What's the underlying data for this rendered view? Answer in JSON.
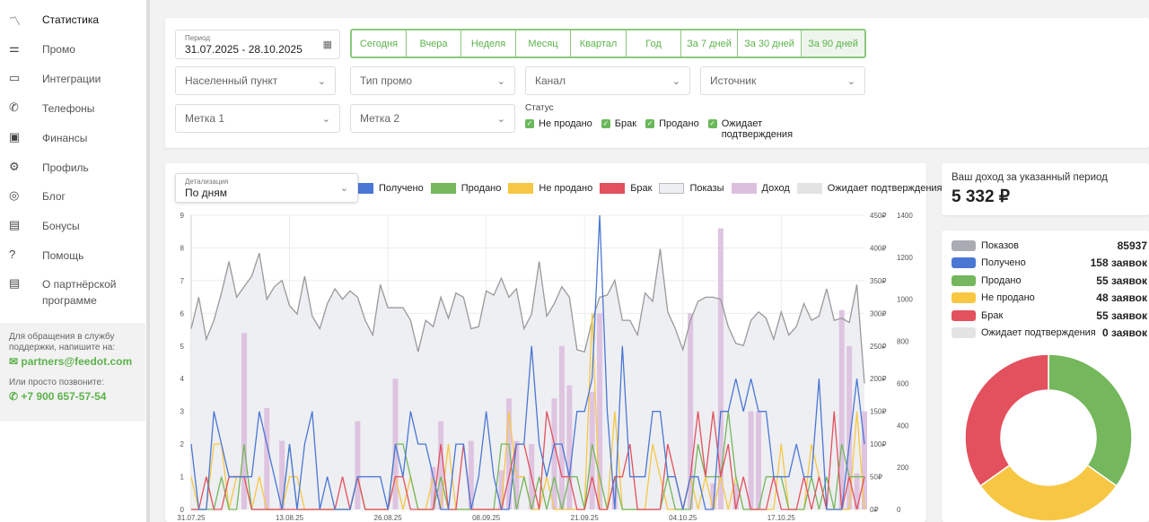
{
  "sidebar": {
    "items": [
      {
        "label": "Статистика",
        "icon": "chart-line-icon",
        "glyph": "〽"
      },
      {
        "label": "Промо",
        "icon": "sliders-icon",
        "glyph": "⚌"
      },
      {
        "label": "Интеграции",
        "icon": "api-icon",
        "glyph": "▭"
      },
      {
        "label": "Телефоны",
        "icon": "phone-icon",
        "glyph": "✆"
      },
      {
        "label": "Финансы",
        "icon": "wallet-icon",
        "glyph": "▣"
      },
      {
        "label": "Профиль",
        "icon": "gear-icon",
        "glyph": "⚙"
      },
      {
        "label": "Блог",
        "icon": "chat-icon",
        "glyph": "◎"
      },
      {
        "label": "Бонусы",
        "icon": "ticket-icon",
        "glyph": "▤"
      },
      {
        "label": "Помощь",
        "icon": "help-icon",
        "glyph": "?"
      },
      {
        "label": "О партнёрской программе",
        "icon": "document-icon",
        "glyph": "▤"
      }
    ],
    "support": {
      "text1": "Для обращения в службу поддержки, напишите на:",
      "email": "partners@feedot.com",
      "text2": "Или просто позвоните:",
      "phone": "+7 900 657-57-54"
    }
  },
  "filters": {
    "period_label": "Период",
    "period_value": "31.07.2025 - 28.10.2025",
    "periods": [
      "Сегодня",
      "Вчера",
      "Неделя",
      "Месяц",
      "Квартал",
      "Год",
      "За 7 дней",
      "За 30 дней",
      "За 90 дней"
    ],
    "selects": [
      "Населенный пункт",
      "Тип промо",
      "Канал",
      "Источник",
      "Метка 1",
      "Метка 2"
    ],
    "status_label": "Статус",
    "statuses": [
      "Не продано",
      "Брак",
      "Продано",
      "Ожидает подтверждения"
    ]
  },
  "detail": {
    "label": "Детализация",
    "value": "По дням"
  },
  "income": {
    "label": "Ваш доход за указанный период",
    "value": "5 332 ₽"
  },
  "summary": [
    {
      "label": "Показов",
      "value": "85937",
      "color": "#a9acb3"
    },
    {
      "label": "Получено",
      "value": "158 заявок",
      "color": "#4a77d4"
    },
    {
      "label": "Продано",
      "value": "55 заявок",
      "color": "#74b75c"
    },
    {
      "label": "Не продано",
      "value": "48 заявок",
      "color": "#f7c744"
    },
    {
      "label": "Брак",
      "value": "55 заявок",
      "color": "#e3505e"
    },
    {
      "label": "Ожидает подтверждения",
      "value": "0 заявок",
      "color": "#e3e3e3"
    }
  ],
  "donut": {
    "values": [
      55,
      48,
      55,
      0
    ],
    "colors": [
      "#74b75c",
      "#f7c744",
      "#e3505e",
      "#e3e3e3"
    ]
  },
  "chart_data": {
    "type": "line",
    "legend": [
      {
        "name": "Получено",
        "color": "#4a77d4"
      },
      {
        "name": "Продано",
        "color": "#74b75c"
      },
      {
        "name": "Не продано",
        "color": "#f7c744"
      },
      {
        "name": "Брак",
        "color": "#e3505e"
      },
      {
        "name": "Показы",
        "color": "#eeeff2"
      },
      {
        "name": "Доход",
        "color": "#dcbfdf"
      },
      {
        "name": "Ожидает подтверждения",
        "color": "#e3e3e3"
      }
    ],
    "xlabels": [
      {
        "i": 0,
        "t": "31.07.25"
      },
      {
        "i": 13,
        "t": "13.08.25"
      },
      {
        "i": 26,
        "t": "26.08.25"
      },
      {
        "i": 39,
        "t": "08.09.25"
      },
      {
        "i": 52,
        "t": "21.09.25"
      },
      {
        "i": 65,
        "t": "04.10.25"
      },
      {
        "i": 78,
        "t": "17.10.25"
      }
    ],
    "y_left": {
      "min": 0,
      "max": 9,
      "ticks": [
        "0",
        "1",
        "2",
        "3",
        "4",
        "5",
        "6",
        "7",
        "8",
        "9"
      ]
    },
    "y_income": {
      "min": 0,
      "max": 450,
      "ticks": [
        "0₽",
        "50₽",
        "100₽",
        "150₽",
        "200₽",
        "250₽",
        "300₽",
        "350₽",
        "400₽",
        "450₽"
      ]
    },
    "y_shows": {
      "min": 0,
      "max": 1400,
      "ticks": [
        "0",
        "200",
        "400",
        "600",
        "800",
        "1000",
        "1200",
        "1400"
      ]
    },
    "shows": [
      860,
      1010,
      810,
      900,
      1030,
      1180,
      1010,
      1060,
      1110,
      1220,
      1000,
      1060,
      1090,
      970,
      930,
      1110,
      920,
      860,
      980,
      1050,
      1000,
      1040,
      1010,
      900,
      830,
      1070,
      960,
      960,
      960,
      900,
      750,
      900,
      870,
      1010,
      910,
      1030,
      1010,
      860,
      870,
      1040,
      1020,
      1100,
      1010,
      1050,
      860,
      930,
      1180,
      920,
      980,
      1060,
      1010,
      760,
      750,
      900,
      1010,
      1020,
      1090,
      900,
      900,
      830,
      1030,
      990,
      1240,
      940,
      860,
      760,
      900,
      990,
      1010,
      1010,
      1000,
      870,
      790,
      780,
      900,
      940,
      910,
      810,
      940,
      830,
      870,
      980,
      900,
      920,
      1050,
      900,
      910,
      890,
      1070,
      600
    ],
    "received": [
      2,
      0,
      0,
      3,
      2,
      1,
      1,
      1,
      1,
      3,
      2,
      1,
      0,
      2,
      0,
      2,
      3,
      0,
      1,
      0,
      0,
      0,
      1,
      1,
      1,
      1,
      0,
      2,
      1,
      3,
      2,
      2,
      1,
      0,
      0,
      2,
      2,
      0,
      1,
      3,
      1,
      0,
      0,
      2,
      2,
      5,
      2,
      1,
      2,
      2,
      1,
      3,
      3,
      4,
      9,
      3,
      0,
      5,
      1,
      1,
      1,
      3,
      3,
      1,
      1,
      0,
      1,
      1,
      0,
      0,
      3,
      3,
      4,
      3,
      4,
      3,
      3,
      1,
      1,
      1,
      2,
      1,
      1,
      4,
      0,
      0,
      0,
      2,
      4,
      2
    ],
    "sold": [
      0,
      0,
      0,
      0,
      1,
      0,
      0,
      2,
      0,
      0,
      0,
      0,
      0,
      2,
      0,
      0,
      0,
      0,
      0,
      0,
      0,
      0,
      1,
      0,
      0,
      0,
      0,
      2,
      2,
      1,
      0,
      0,
      0,
      1,
      0,
      0,
      0,
      0,
      0,
      0,
      0,
      2,
      2,
      0,
      1,
      0,
      1,
      0,
      1,
      0,
      1,
      1,
      0,
      2,
      1,
      0,
      1,
      0,
      0,
      0,
      0,
      0,
      0,
      1,
      0,
      0,
      0,
      2,
      1,
      1,
      1,
      3,
      1,
      0,
      0,
      0,
      1,
      1,
      1,
      0,
      0,
      0,
      1,
      0,
      1,
      0,
      2,
      1,
      1,
      1
    ],
    "not_sold": [
      1,
      0,
      0,
      2,
      2,
      0,
      1,
      1,
      0,
      1,
      0,
      0,
      0,
      1,
      1,
      0,
      0,
      0,
      0,
      0,
      0,
      0,
      1,
      0,
      0,
      0,
      0,
      1,
      0,
      1,
      0,
      0,
      1,
      0,
      2,
      0,
      0,
      0,
      0,
      0,
      0,
      0,
      3,
      1,
      1,
      0,
      0,
      1,
      0,
      0,
      0,
      0,
      0,
      6,
      0,
      0,
      3,
      0,
      0,
      0,
      0,
      2,
      1,
      0,
      0,
      0,
      1,
      0,
      1,
      0,
      1,
      0,
      1,
      0,
      0,
      0,
      0,
      0,
      2,
      0,
      0,
      0,
      2,
      1,
      0,
      0,
      0,
      0,
      3,
      0
    ],
    "brak": [
      0,
      0,
      1,
      0,
      0,
      1,
      1,
      1,
      0,
      0,
      0,
      0,
      0,
      0,
      0,
      0,
      0,
      0,
      0,
      0,
      1,
      0,
      1,
      0,
      0,
      0,
      0,
      1,
      1,
      0,
      0,
      0,
      0,
      2,
      0,
      0,
      2,
      0,
      0,
      0,
      0,
      0,
      1,
      2,
      2,
      1,
      0,
      3,
      2,
      1,
      1,
      0,
      0,
      1,
      0,
      0,
      1,
      1,
      2,
      0,
      0,
      0,
      0,
      2,
      1,
      0,
      1,
      3,
      1,
      3,
      1,
      2,
      0,
      1,
      0,
      0,
      0,
      1,
      0,
      0,
      0,
      1,
      0,
      1,
      0,
      3,
      0,
      1,
      0,
      1
    ],
    "income": [
      0,
      0,
      0,
      0,
      0,
      0,
      0,
      270,
      0,
      0,
      155,
      0,
      105,
      0,
      0,
      0,
      0,
      0,
      0,
      0,
      0,
      0,
      135,
      0,
      0,
      0,
      0,
      200,
      0,
      0,
      0,
      0,
      65,
      135,
      0,
      0,
      0,
      105,
      0,
      0,
      0,
      60,
      170,
      105,
      0,
      100,
      0,
      0,
      170,
      250,
      190,
      0,
      0,
      180,
      300,
      0,
      45,
      0,
      0,
      0,
      0,
      0,
      0,
      0,
      0,
      0,
      300,
      0,
      0,
      40,
      430,
      0,
      40,
      0,
      150,
      150,
      0,
      0,
      0,
      0,
      0,
      0,
      0,
      0,
      0,
      0,
      305,
      250,
      55,
      150
    ]
  }
}
